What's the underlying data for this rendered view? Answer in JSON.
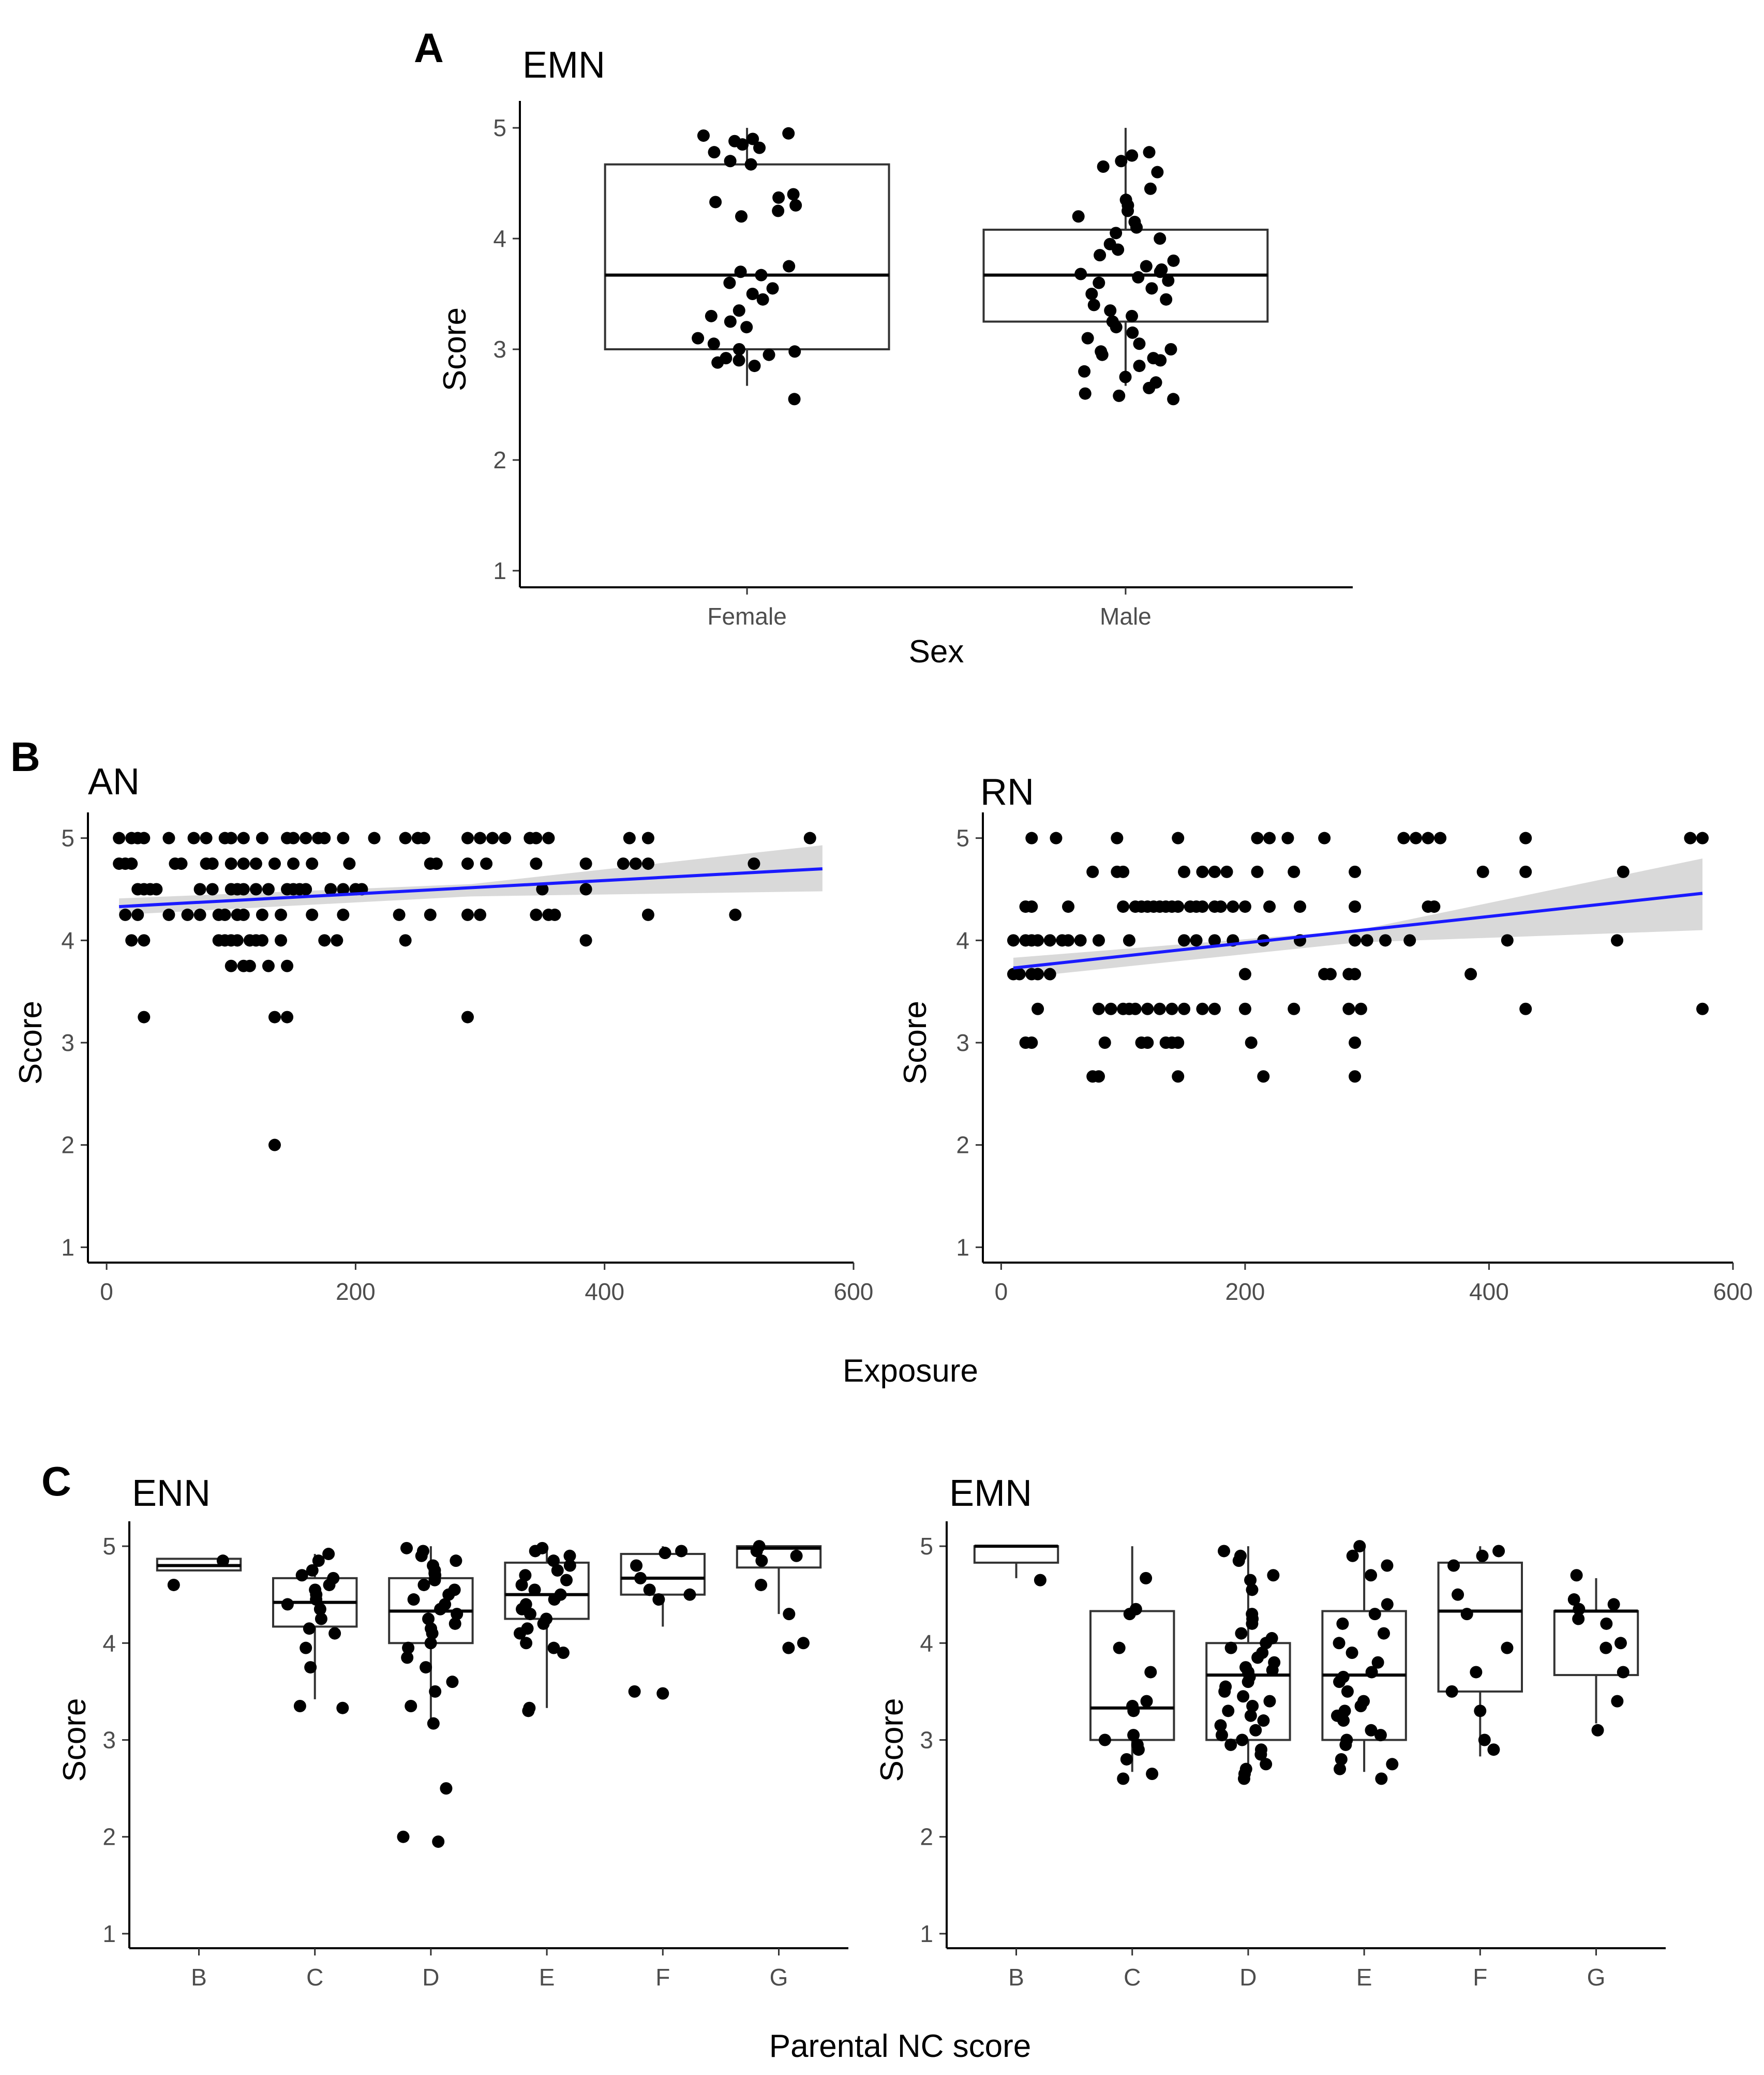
{
  "figure": {
    "panel_letters": [
      "A",
      "B",
      "C"
    ],
    "shared_labels": {
      "exposure": "Exposure",
      "parental_nc": "Parental NC score"
    }
  },
  "chart_data": [
    {
      "id": "A",
      "type": "box",
      "title": "EMN",
      "xlabel": "Sex",
      "ylabel": "Score",
      "categories": [
        "Female",
        "Male"
      ],
      "ylim": [
        0.85,
        5.15
      ],
      "yticks": [
        "1",
        "2",
        "3",
        "4",
        "5"
      ],
      "boxes": [
        {
          "q1": 3.0,
          "median": 3.67,
          "q3": 4.67,
          "low": 2.67,
          "high": 5.0
        },
        {
          "q1": 3.25,
          "median": 3.67,
          "q3": 4.08,
          "low": 2.67,
          "high": 5.0
        }
      ],
      "points": [
        [
          4.95,
          4.93,
          4.9,
          4.88,
          4.85,
          4.82,
          4.78,
          4.7,
          4.67,
          4.4,
          4.37,
          4.33,
          4.3,
          4.25,
          4.2,
          3.75,
          3.7,
          3.67,
          3.6,
          3.55,
          3.5,
          3.45,
          3.35,
          3.3,
          3.25,
          3.2,
          3.1,
          3.05,
          3.0,
          2.98,
          2.95,
          2.92,
          2.9,
          2.88,
          2.85,
          2.55
        ],
        [
          4.78,
          4.75,
          4.7,
          4.65,
          4.6,
          4.45,
          4.35,
          4.3,
          4.25,
          4.2,
          4.15,
          4.1,
          4.05,
          4.0,
          3.95,
          3.9,
          3.85,
          3.8,
          3.75,
          3.72,
          3.7,
          3.68,
          3.65,
          3.62,
          3.6,
          3.55,
          3.5,
          3.45,
          3.4,
          3.35,
          3.3,
          3.25,
          3.2,
          3.15,
          3.1,
          3.05,
          3.0,
          2.98,
          2.95,
          2.92,
          2.9,
          2.85,
          2.8,
          2.75,
          2.7,
          2.65,
          2.6,
          2.58,
          2.55
        ]
      ]
    },
    {
      "id": "B-AN",
      "type": "scatter",
      "title": "AN",
      "xlabel": "Exposure",
      "ylabel": "Score",
      "xlim": [
        -15,
        600
      ],
      "ylim": [
        0.85,
        5.15
      ],
      "xticks": [
        "0",
        "200",
        "400",
        "600"
      ],
      "yticks": [
        "1",
        "2",
        "3",
        "4",
        "5"
      ],
      "x": [
        10,
        20,
        25,
        30,
        50,
        70,
        80,
        95,
        100,
        110,
        125,
        145,
        150,
        160,
        170,
        175,
        190,
        215,
        240,
        250,
        255,
        290,
        300,
        310,
        320,
        340,
        345,
        355,
        420,
        435,
        565,
        10,
        15,
        20,
        55,
        60,
        80,
        85,
        100,
        110,
        120,
        135,
        150,
        165,
        195,
        260,
        265,
        290,
        305,
        345,
        385,
        415,
        425,
        435,
        520,
        25,
        30,
        35,
        40,
        75,
        85,
        100,
        105,
        110,
        120,
        130,
        145,
        150,
        155,
        160,
        180,
        190,
        200,
        205,
        350,
        385,
        15,
        25,
        50,
        65,
        75,
        90,
        95,
        105,
        110,
        125,
        140,
        165,
        190,
        235,
        260,
        290,
        300,
        345,
        355,
        360,
        435,
        505,
        20,
        30,
        90,
        95,
        100,
        105,
        115,
        120,
        125,
        140,
        175,
        185,
        240,
        385,
        100,
        110,
        115,
        130,
        145,
        30,
        135,
        145,
        290,
        135
      ],
      "y": [
        5,
        5,
        5,
        5,
        5,
        5,
        5,
        5,
        5,
        5,
        5,
        5,
        5,
        5,
        5,
        5,
        5,
        5,
        5,
        5,
        5,
        5,
        5,
        5,
        5,
        5,
        5,
        5,
        5,
        5,
        5,
        4.75,
        4.75,
        4.75,
        4.75,
        4.75,
        4.75,
        4.75,
        4.75,
        4.75,
        4.75,
        4.75,
        4.75,
        4.75,
        4.75,
        4.75,
        4.75,
        4.75,
        4.75,
        4.75,
        4.75,
        4.75,
        4.75,
        4.75,
        4.75,
        4.5,
        4.5,
        4.5,
        4.5,
        4.5,
        4.5,
        4.5,
        4.5,
        4.5,
        4.5,
        4.5,
        4.5,
        4.5,
        4.5,
        4.5,
        4.5,
        4.5,
        4.5,
        4.5,
        4.5,
        4.5,
        4.25,
        4.25,
        4.25,
        4.25,
        4.25,
        4.25,
        4.25,
        4.25,
        4.25,
        4.25,
        4.25,
        4.25,
        4.25,
        4.25,
        4.25,
        4.25,
        4.25,
        4.25,
        4.25,
        4.25,
        4.25,
        4.25,
        4,
        4,
        4,
        4,
        4,
        4,
        4,
        4,
        4,
        4,
        4,
        4,
        4,
        4,
        3.75,
        3.75,
        3.75,
        3.75,
        3.75,
        3.25,
        3.25,
        3.25,
        3.25,
        2
      ],
      "fit": {
        "x0": 10,
        "y0": 4.33,
        "x1": 575,
        "y1": 4.7,
        "ci_start": [
          4.25,
          4.41
        ],
        "ci_mid": [
          4.43,
          4.55
        ],
        "ci_end": [
          4.48,
          4.93
        ]
      }
    },
    {
      "id": "B-RN",
      "type": "scatter",
      "title": "RN",
      "xlabel": "Exposure",
      "ylabel": "Score",
      "xlim": [
        -15,
        600
      ],
      "ylim": [
        0.85,
        5.15
      ],
      "xticks": [
        "0",
        "200",
        "400",
        "600"
      ],
      "yticks": [
        "1",
        "2",
        "3",
        "4",
        "5"
      ],
      "x": [
        25,
        45,
        95,
        145,
        210,
        220,
        235,
        265,
        330,
        340,
        350,
        360,
        430,
        565,
        575,
        75,
        95,
        100,
        150,
        165,
        175,
        185,
        210,
        240,
        290,
        395,
        430,
        510,
        20,
        25,
        55,
        100,
        110,
        115,
        120,
        125,
        130,
        135,
        140,
        145,
        155,
        160,
        165,
        175,
        180,
        190,
        200,
        220,
        245,
        290,
        350,
        355,
        10,
        20,
        25,
        30,
        40,
        50,
        55,
        65,
        80,
        105,
        150,
        160,
        175,
        190,
        215,
        245,
        290,
        300,
        315,
        335,
        415,
        505,
        10,
        15,
        25,
        30,
        40,
        200,
        265,
        270,
        285,
        290,
        385,
        30,
        80,
        90,
        100,
        105,
        110,
        120,
        130,
        140,
        150,
        165,
        175,
        200,
        240,
        285,
        295,
        430,
        575,
        20,
        25,
        85,
        115,
        120,
        135,
        140,
        145,
        205,
        290,
        75,
        80,
        145,
        215,
        290
      ],
      "y": [
        5,
        5,
        5,
        5,
        5,
        5,
        5,
        5,
        5,
        5,
        5,
        5,
        5,
        5,
        5,
        4.67,
        4.67,
        4.67,
        4.67,
        4.67,
        4.67,
        4.67,
        4.67,
        4.67,
        4.67,
        4.67,
        4.67,
        4.67,
        4.33,
        4.33,
        4.33,
        4.33,
        4.33,
        4.33,
        4.33,
        4.33,
        4.33,
        4.33,
        4.33,
        4.33,
        4.33,
        4.33,
        4.33,
        4.33,
        4.33,
        4.33,
        4.33,
        4.33,
        4.33,
        4.33,
        4.33,
        4.33,
        4,
        4,
        4,
        4,
        4,
        4,
        4,
        4,
        4,
        4,
        4,
        4,
        4,
        4,
        4,
        4,
        4,
        4,
        4,
        4,
        4,
        4,
        3.67,
        3.67,
        3.67,
        3.67,
        3.67,
        3.67,
        3.67,
        3.67,
        3.67,
        3.67,
        3.67,
        3.33,
        3.33,
        3.33,
        3.33,
        3.33,
        3.33,
        3.33,
        3.33,
        3.33,
        3.33,
        3.33,
        3.33,
        3.33,
        3.33,
        3.33,
        3.33,
        3.33,
        3.33,
        3,
        3,
        3,
        3,
        3,
        3,
        3,
        3,
        3,
        3,
        2.67,
        2.67,
        2.67,
        2.67,
        2.67
      ],
      "fit": {
        "x0": 10,
        "y0": 3.73,
        "x1": 575,
        "y1": 4.46,
        "ci_start": [
          3.63,
          3.83
        ],
        "ci_mid": [
          3.98,
          4.1
        ],
        "ci_end": [
          4.1,
          4.8
        ]
      }
    },
    {
      "id": "C-ENN",
      "type": "box",
      "title": "ENN",
      "xlabel": "Parental NC score",
      "ylabel": "Score",
      "categories": [
        "B",
        "C",
        "D",
        "E",
        "F",
        "G"
      ],
      "ylim": [
        0.85,
        5.15
      ],
      "yticks": [
        "1",
        "2",
        "3",
        "4",
        "5"
      ],
      "boxes": [
        {
          "q1": 4.75,
          "median": 4.8,
          "q3": 4.87,
          "low": 4.75,
          "high": 4.87
        },
        {
          "q1": 4.17,
          "median": 4.42,
          "q3": 4.67,
          "low": 3.42,
          "high": 4.92
        },
        {
          "q1": 4.0,
          "median": 4.33,
          "q3": 4.67,
          "low": 3.17,
          "high": 5.0
        },
        {
          "q1": 4.25,
          "median": 4.5,
          "q3": 4.83,
          "low": 3.33,
          "high": 5.0
        },
        {
          "q1": 4.5,
          "median": 4.67,
          "q3": 4.92,
          "low": 4.17,
          "high": 5.0
        },
        {
          "q1": 4.78,
          "median": 4.98,
          "q3": 5.0,
          "low": 4.3,
          "high": 5.0
        }
      ],
      "points": [
        [
          4.85,
          4.6
        ],
        [
          4.92,
          4.85,
          4.75,
          4.7,
          4.67,
          4.6,
          4.55,
          4.5,
          4.45,
          4.4,
          4.35,
          4.25,
          4.15,
          4.1,
          3.95,
          3.75,
          3.35,
          3.33
        ],
        [
          4.98,
          4.95,
          4.9,
          4.85,
          4.8,
          4.75,
          4.72,
          4.7,
          4.65,
          4.6,
          4.55,
          4.5,
          4.45,
          4.4,
          4.35,
          4.3,
          4.25,
          4.2,
          4.15,
          4.1,
          4.0,
          3.95,
          3.85,
          3.75,
          3.6,
          3.5,
          3.35,
          3.17,
          2.5,
          2.0,
          1.95
        ],
        [
          4.98,
          4.95,
          4.9,
          4.85,
          4.8,
          4.75,
          4.7,
          4.65,
          4.6,
          4.55,
          4.5,
          4.45,
          4.4,
          4.35,
          4.3,
          4.25,
          4.2,
          4.15,
          4.1,
          4.0,
          3.95,
          3.9,
          3.33,
          3.3
        ],
        [
          4.95,
          4.93,
          4.8,
          4.67,
          4.55,
          4.5,
          4.45,
          3.5,
          3.48
        ],
        [
          5.0,
          4.95,
          4.9,
          4.85,
          4.6,
          4.3,
          4.0,
          3.95
        ]
      ]
    },
    {
      "id": "C-EMN",
      "type": "box",
      "title": "EMN",
      "xlabel": "Parental NC score",
      "ylabel": "Score",
      "categories": [
        "B",
        "C",
        "D",
        "E",
        "F",
        "G"
      ],
      "ylim": [
        0.85,
        5.15
      ],
      "yticks": [
        "1",
        "2",
        "3",
        "4",
        "5"
      ],
      "boxes": [
        {
          "q1": 4.83,
          "median": 5.0,
          "q3": 5.0,
          "low": 4.67,
          "high": 5.0
        },
        {
          "q1": 3.0,
          "median": 3.33,
          "q3": 4.33,
          "low": 2.67,
          "high": 5.0
        },
        {
          "q1": 3.0,
          "median": 3.67,
          "q3": 4.0,
          "low": 2.67,
          "high": 5.0
        },
        {
          "q1": 3.0,
          "median": 3.67,
          "q3": 4.33,
          "low": 2.67,
          "high": 5.0
        },
        {
          "q1": 3.5,
          "median": 4.33,
          "q3": 4.83,
          "low": 2.83,
          "high": 5.0
        },
        {
          "q1": 3.67,
          "median": 4.33,
          "q3": 4.33,
          "low": 3.17,
          "high": 4.67
        }
      ],
      "points": [
        [
          4.65
        ],
        [
          4.67,
          4.35,
          4.3,
          3.95,
          3.7,
          3.4,
          3.35,
          3.3,
          3.05,
          3.0,
          2.95,
          2.9,
          2.8,
          2.65,
          2.6
        ],
        [
          4.95,
          4.9,
          4.85,
          4.7,
          4.65,
          4.55,
          4.3,
          4.25,
          4.2,
          4.1,
          4.05,
          4.0,
          3.95,
          3.9,
          3.85,
          3.8,
          3.75,
          3.72,
          3.7,
          3.65,
          3.6,
          3.55,
          3.5,
          3.45,
          3.4,
          3.35,
          3.3,
          3.25,
          3.2,
          3.15,
          3.1,
          3.05,
          3.0,
          2.95,
          2.9,
          2.85,
          2.75,
          2.7,
          2.65,
          2.6
        ],
        [
          5.0,
          4.9,
          4.8,
          4.7,
          4.4,
          4.3,
          4.2,
          4.1,
          4.0,
          3.9,
          3.8,
          3.7,
          3.65,
          3.6,
          3.5,
          3.4,
          3.35,
          3.3,
          3.25,
          3.2,
          3.1,
          3.05,
          3.0,
          2.95,
          2.8,
          2.75,
          2.7,
          2.6
        ],
        [
          4.95,
          4.9,
          4.8,
          4.5,
          4.3,
          3.95,
          3.7,
          3.5,
          3.3,
          3.0,
          2.9
        ],
        [
          4.7,
          4.45,
          4.4,
          4.35,
          4.25,
          4.2,
          4.0,
          3.95,
          3.7,
          3.4,
          3.1
        ]
      ]
    }
  ]
}
